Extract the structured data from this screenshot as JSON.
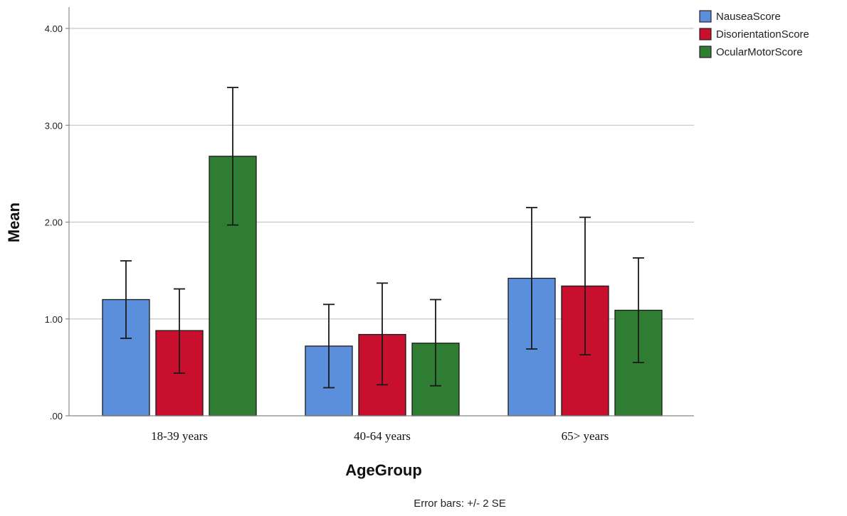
{
  "chart_data": {
    "type": "bar",
    "categories": [
      "18-39 years",
      "40-64 years",
      "65> years"
    ],
    "series": [
      {
        "name": "NauseaScore",
        "color": "#5b8fdc",
        "values": [
          1.2,
          0.72,
          1.42
        ],
        "error_low": [
          0.8,
          0.29,
          0.69
        ],
        "error_high": [
          1.6,
          1.15,
          2.15
        ]
      },
      {
        "name": "DisorientationScore",
        "color": "#c8102e",
        "values": [
          0.88,
          0.84,
          1.34
        ],
        "error_low": [
          0.44,
          0.32,
          0.63
        ],
        "error_high": [
          1.31,
          1.37,
          2.05
        ]
      },
      {
        "name": "OcularMotorScore",
        "color": "#2e7d32",
        "values": [
          2.68,
          0.75,
          1.09
        ],
        "error_low": [
          1.97,
          0.31,
          0.55
        ],
        "error_high": [
          3.39,
          1.2,
          1.63
        ]
      }
    ],
    "xlabel": "AgeGroup",
    "ylabel": "Mean",
    "ylim": [
      0,
      4.0
    ],
    "yticks": [
      {
        "value": 0,
        "label": ".00"
      },
      {
        "value": 1,
        "label": "1.00"
      },
      {
        "value": 2,
        "label": "2.00"
      },
      {
        "value": 3,
        "label": "3.00"
      },
      {
        "value": 4,
        "label": "4.00"
      }
    ],
    "grid": true,
    "legend_position": "top-right",
    "footnote": "Error bars: +/- 2 SE"
  }
}
